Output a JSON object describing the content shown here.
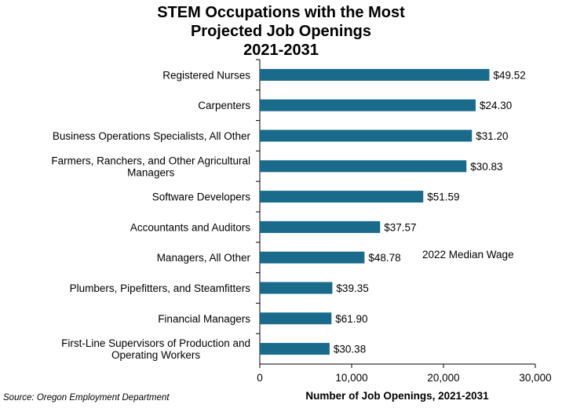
{
  "chart_data": {
    "type": "bar",
    "orientation": "horizontal",
    "title_lines": [
      "STEM Occupations with the Most",
      "Projected Job Openings",
      "2021-2031"
    ],
    "categories": [
      [
        "Registered Nurses"
      ],
      [
        "Carpenters"
      ],
      [
        "Business Operations Specialists, All Other"
      ],
      [
        "Farmers, Ranchers, and Other Agricultural",
        "Managers"
      ],
      [
        "Software Developers"
      ],
      [
        "Accountants and Auditors"
      ],
      [
        "Managers, All Other"
      ],
      [
        "Plumbers, Pipefitters, and Steamfitters"
      ],
      [
        "Financial Managers"
      ],
      [
        "First-Line Supervisors of Production and",
        "Operating Workers"
      ]
    ],
    "values": [
      25000,
      23500,
      23100,
      22500,
      17800,
      13100,
      11400,
      7900,
      7800,
      7600
    ],
    "data_labels": [
      "$49.52",
      "$24.30",
      "$31.20",
      "$30.83",
      "$51.59",
      "$37.57",
      "$48.78",
      "$39.35",
      "$61.90",
      "$30.38"
    ],
    "xlabel": "Number of Job Openings, 2021-2031",
    "xlim": [
      0,
      30000
    ],
    "xticks": [
      0,
      10000,
      20000,
      30000
    ],
    "xtick_labels": [
      "0",
      "10,000",
      "20,000",
      "30,000"
    ],
    "annotation": "2022 Median Wage",
    "source": "Source: Oregon Employment Department",
    "bar_color": "#1a6a8c",
    "grid": false,
    "legend": "none"
  }
}
